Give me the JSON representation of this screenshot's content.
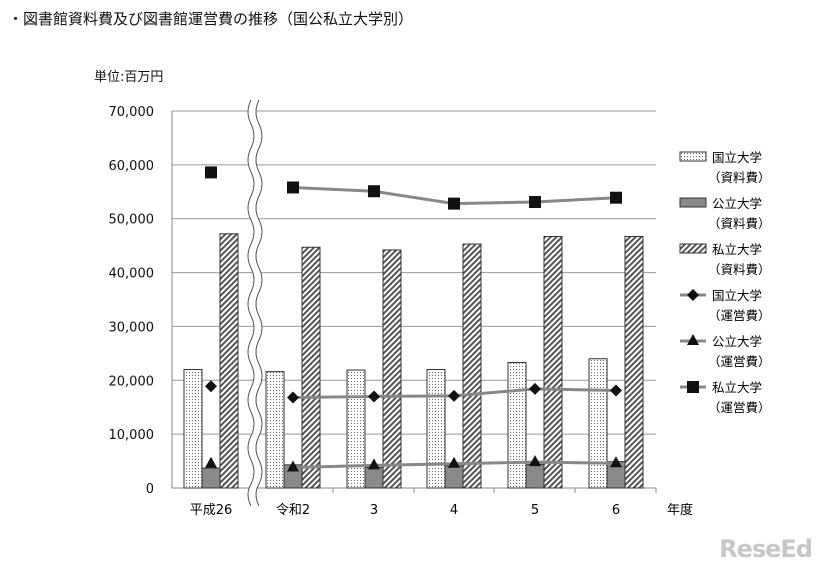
{
  "title": "・図書館資料費及び図書館運営費の推移（国公私立大学別）",
  "unit_label": "単位:百万円",
  "logo": "ReseEd",
  "chart_data": {
    "type": "bar",
    "categories": [
      "平成26",
      "令和2",
      "3",
      "4",
      "5",
      "6"
    ],
    "xlabel": "年度",
    "ylabel": "",
    "ylim": [
      0,
      70000
    ],
    "yticks": [
      "0",
      "10,000",
      "20,000",
      "30,000",
      "40,000",
      "50,000",
      "60,000",
      "70,000"
    ],
    "grid": true,
    "legend_position": "right",
    "axis_break_after": "平成26",
    "series": [
      {
        "name": "国立大学\n（資料費）",
        "kind": "bar",
        "pattern": "dots",
        "values": [
          22000,
          21600,
          21900,
          22000,
          23300,
          24000
        ]
      },
      {
        "name": "公立大学\n（資料費）",
        "kind": "bar",
        "pattern": "dark-gray",
        "values": [
          3700,
          4300,
          3800,
          4100,
          4400,
          4900
        ]
      },
      {
        "name": "私立大学\n（資料費）",
        "kind": "bar",
        "pattern": "diagonal-hatch",
        "values": [
          47200,
          44700,
          44200,
          45300,
          46700,
          46700
        ]
      },
      {
        "name": "国立大学\n（運営費）",
        "kind": "line",
        "marker": "diamond",
        "values": [
          18900,
          16800,
          17000,
          17100,
          18400,
          18100
        ]
      },
      {
        "name": "公立大学\n（運営費）",
        "kind": "line",
        "marker": "triangle",
        "values": [
          4500,
          3800,
          4200,
          4500,
          4800,
          4600
        ]
      },
      {
        "name": "私立大学\n（運営費）",
        "kind": "line",
        "marker": "square",
        "values": [
          58600,
          55800,
          55100,
          52800,
          53100,
          53900
        ]
      }
    ]
  }
}
